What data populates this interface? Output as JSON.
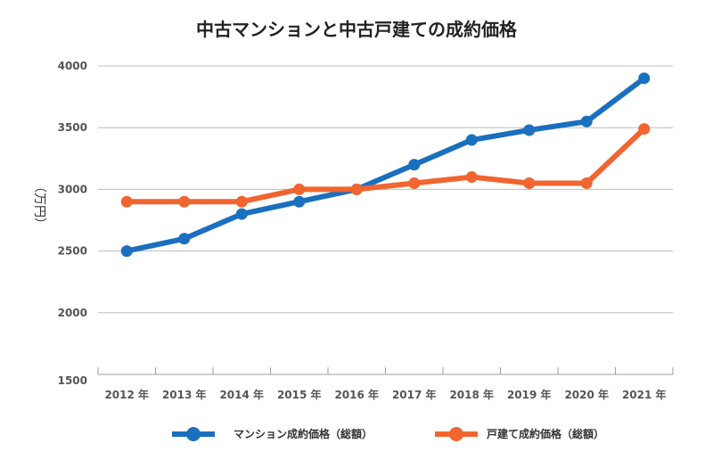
{
  "chart_data": {
    "type": "line",
    "title": "中古マンションと中古戸建ての成約価格",
    "ylabel": "（万円）",
    "xlabel": "",
    "categories": [
      "2012 年",
      "2013 年",
      "2014 年",
      "2015 年",
      "2016 年",
      "2017 年",
      "2018 年",
      "2019 年",
      "2020 年",
      "2021 年"
    ],
    "ylim": [
      1500,
      4000
    ],
    "yticks": [
      1500,
      2000,
      2500,
      3000,
      3500,
      4000
    ],
    "grid": true,
    "legend_position": "bottom",
    "series": [
      {
        "name": "マンション成約価格（総額）",
        "color": "#1a6fbf",
        "values": [
          2500,
          2600,
          2800,
          2900,
          3000,
          3200,
          3400,
          3480,
          3550,
          3900
        ]
      },
      {
        "name": "戸建て成約価格（総額）",
        "color": "#f06530",
        "values": [
          2900,
          2900,
          2900,
          3000,
          3000,
          3050,
          3100,
          3050,
          3050,
          3490
        ]
      }
    ]
  }
}
